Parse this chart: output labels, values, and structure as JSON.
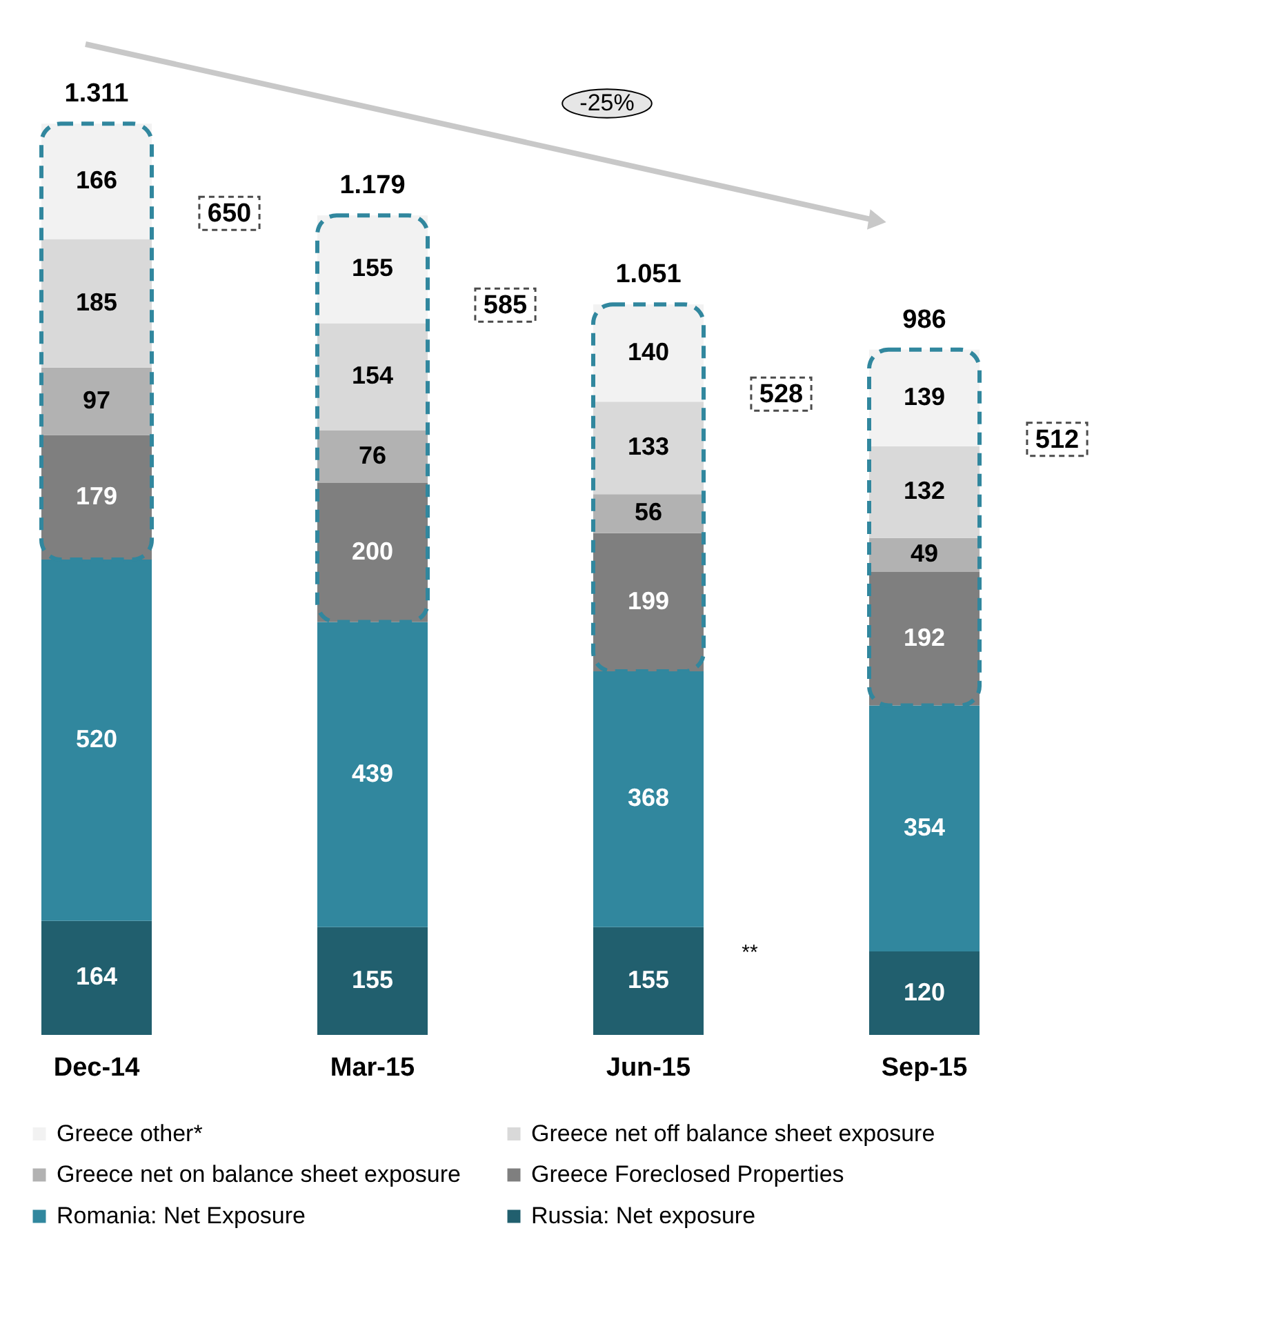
{
  "chart_data": {
    "type": "bar",
    "stacked": true,
    "categories": [
      "Dec-14",
      "Mar-15",
      "Jun-15",
      "Sep-15"
    ],
    "series": [
      {
        "name": "Russia: Net exposure",
        "color": "#215f6e",
        "values": [
          164,
          155,
          155,
          120
        ]
      },
      {
        "name": "Romania: Net Exposure",
        "color": "#31879e",
        "values": [
          520,
          439,
          368,
          354
        ]
      },
      {
        "name": "Greece Foreclosed Properties",
        "color": "#7f7f7f",
        "values": [
          179,
          200,
          199,
          192
        ]
      },
      {
        "name": "Greece net on balance sheet exposure",
        "color": "#b2b2b2",
        "values": [
          97,
          76,
          56,
          49
        ]
      },
      {
        "name": "Greece net off balance sheet exposure",
        "color": "#d9d9d9",
        "values": [
          185,
          154,
          133,
          132
        ]
      },
      {
        "name": "Greece other*",
        "color": "#f2f2f2",
        "values": [
          166,
          155,
          140,
          139
        ]
      }
    ],
    "data_labels": true,
    "totals": [
      "1.311",
      "1.179",
      "1.051",
      "986"
    ],
    "annotations": [
      "650",
      "585",
      "528",
      "512",
      "**",
      "-25%"
    ],
    "legend": "bottom",
    "grid": false,
    "tick_labels": "x"
  }
}
